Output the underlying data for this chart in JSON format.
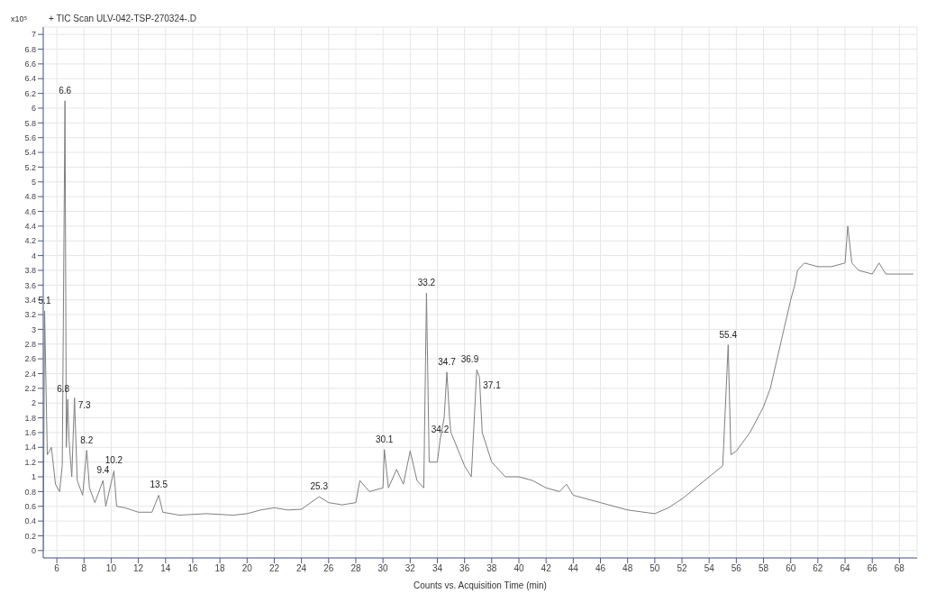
{
  "chart_data": {
    "type": "line",
    "title": "+ TIC Scan ULV-042-TSP-270324-.D",
    "xlabel": "Counts vs. Acquisition Time (min)",
    "ylabel": "x10⁵",
    "x": [
      5.0,
      5.1,
      5.3,
      5.6,
      5.9,
      6.2,
      6.4,
      6.6,
      6.7,
      6.8,
      6.9,
      7.1,
      7.3,
      7.5,
      7.9,
      8.2,
      8.4,
      8.8,
      9.4,
      9.6,
      10.2,
      10.4,
      11,
      12,
      13,
      13.5,
      13.8,
      15,
      17,
      19,
      20,
      21,
      22,
      23,
      24,
      25.3,
      26,
      27,
      28,
      28.3,
      29,
      30,
      30.1,
      30.4,
      31,
      31.5,
      32,
      32.5,
      33,
      33.2,
      33.4,
      34,
      34.2,
      34.5,
      34.7,
      34.9,
      35,
      36,
      36.5,
      36.9,
      37.1,
      37.3,
      38,
      39,
      40,
      41,
      42,
      43,
      43.5,
      44,
      46,
      48,
      50,
      51,
      52,
      53,
      54,
      55,
      55.4,
      55.6,
      56,
      57,
      58,
      58.5,
      59,
      59.5,
      60,
      60.3,
      60.5,
      61,
      62,
      63,
      64,
      64.2,
      64.5,
      65,
      66,
      66.5,
      67,
      68,
      69
    ],
    "series": [
      {
        "color": "#7f7f7f",
        "values": [
          0,
          3.25,
          1.3,
          1.4,
          0.9,
          0.8,
          1.15,
          6.1,
          1.4,
          2.05,
          1.5,
          1.0,
          2.07,
          0.95,
          0.75,
          1.36,
          0.85,
          0.65,
          0.95,
          0.6,
          1.08,
          0.6,
          0.58,
          0.52,
          0.52,
          0.75,
          0.52,
          0.48,
          0.5,
          0.48,
          0.5,
          0.55,
          0.58,
          0.55,
          0.56,
          0.73,
          0.65,
          0.62,
          0.65,
          0.95,
          0.8,
          0.85,
          1.37,
          0.85,
          1.1,
          0.9,
          1.35,
          0.95,
          0.85,
          3.49,
          1.2,
          1.2,
          1.5,
          1.8,
          2.42,
          1.8,
          1.6,
          1.15,
          1.0,
          2.45,
          2.35,
          1.6,
          1.2,
          1.0,
          1.0,
          0.95,
          0.85,
          0.8,
          0.9,
          0.75,
          0.65,
          0.55,
          0.5,
          0.58,
          0.7,
          0.85,
          1.0,
          1.15,
          2.79,
          1.3,
          1.35,
          1.6,
          1.95,
          2.2,
          2.6,
          3.0,
          3.4,
          3.6,
          3.8,
          3.9,
          3.85,
          3.85,
          3.9,
          4.4,
          3.9,
          3.8,
          3.75,
          3.9,
          3.75,
          3.75,
          3.75
        ]
      }
    ],
    "xlim": [
      5,
      69.3
    ],
    "xticks": [
      6,
      8,
      10,
      12,
      14,
      16,
      18,
      20,
      22,
      24,
      26,
      28,
      30,
      32,
      34,
      36,
      38,
      40,
      42,
      44,
      46,
      48,
      50,
      52,
      54,
      56,
      58,
      60,
      62,
      64,
      66,
      68
    ],
    "ylim": [
      -0.1,
      7.1
    ],
    "yticks": [
      0,
      0.2,
      0.4,
      0.6,
      0.8,
      1,
      1.2,
      1.4,
      1.6,
      1.8,
      2,
      2.2,
      2.4,
      2.6,
      2.8,
      3,
      3.2,
      3.4,
      3.6,
      3.8,
      4,
      4.2,
      4.4,
      4.6,
      4.8,
      5,
      5.2,
      5.4,
      5.6,
      5.8,
      6,
      6.2,
      6.4,
      6.6,
      6.8,
      7
    ],
    "grid": true,
    "marker": "none",
    "line_style": "solid",
    "annotations": [
      {
        "text": "5.1",
        "x": 5.1,
        "y": 3.25
      },
      {
        "text": "6.6",
        "x": 6.6,
        "y": 6.1
      },
      {
        "text": "6.8",
        "x": 6.8,
        "y": 2.05
      },
      {
        "text": "7.3",
        "x": 7.3,
        "y": 2.07
      },
      {
        "text": "8.2",
        "x": 8.2,
        "y": 1.36
      },
      {
        "text": "9.4",
        "x": 9.4,
        "y": 0.95
      },
      {
        "text": "10.2",
        "x": 10.2,
        "y": 1.08
      },
      {
        "text": "13.5",
        "x": 13.5,
        "y": 0.75
      },
      {
        "text": "25.3",
        "x": 25.3,
        "y": 0.73
      },
      {
        "text": "30.1",
        "x": 30.1,
        "y": 1.37
      },
      {
        "text": "33.2",
        "x": 33.2,
        "y": 3.49
      },
      {
        "text": "34.2",
        "x": 34.2,
        "y": 1.5
      },
      {
        "text": "34.7",
        "x": 34.7,
        "y": 2.42
      },
      {
        "text": "36.9",
        "x": 36.9,
        "y": 2.45
      },
      {
        "text": "37.1",
        "x": 37.1,
        "y": 2.35
      },
      {
        "text": "55.4",
        "x": 55.4,
        "y": 2.79
      }
    ]
  }
}
